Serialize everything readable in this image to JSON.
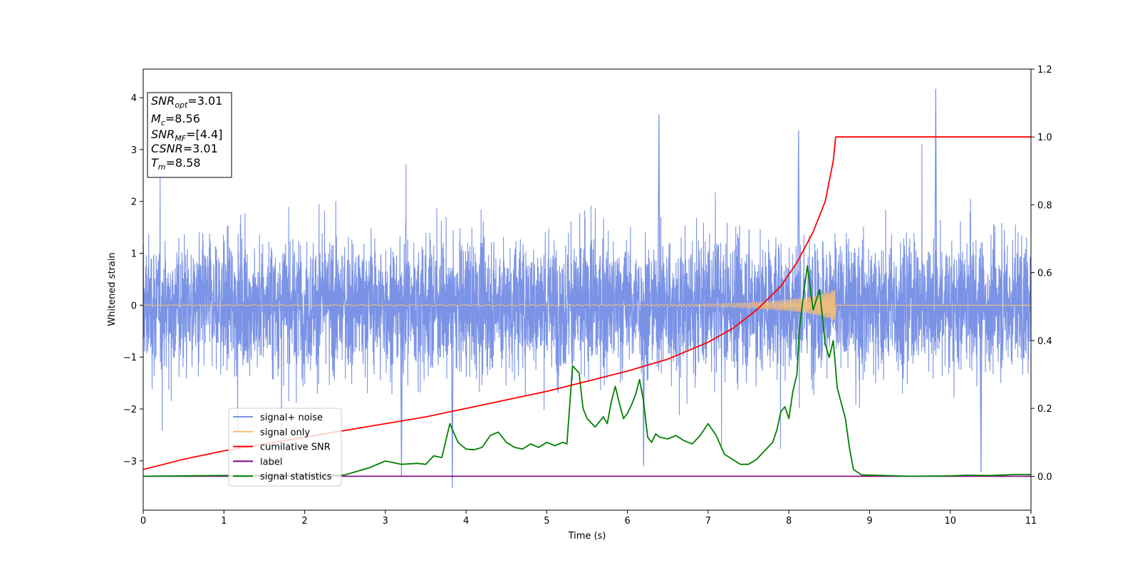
{
  "chart_data": {
    "type": "line",
    "title": "",
    "xlabel": "Time (s)",
    "ylabel": "Whitened strain",
    "xlim": [
      0,
      11
    ],
    "ylim_left": [
      -3.95,
      4.55
    ],
    "ylim_right": [
      -0.1,
      1.2
    ],
    "x_ticks": [
      0,
      1,
      2,
      3,
      4,
      5,
      6,
      7,
      8,
      9,
      10,
      11
    ],
    "y_ticks_left": [
      -3,
      -2,
      -1,
      0,
      1,
      2,
      3,
      4
    ],
    "y_ticks_left_labels": [
      "−3",
      "−2",
      "−1",
      "0",
      "1",
      "2",
      "3",
      "4"
    ],
    "y_ticks_right": [
      0.0,
      0.2,
      0.4,
      0.6,
      0.8,
      1.0,
      1.2
    ],
    "y_ticks_right_labels": [
      "0.0",
      "0.2",
      "0.4",
      "0.6",
      "0.8",
      "1.0",
      "1.2"
    ],
    "grid": false,
    "legend_position": "lower-left",
    "annotation": {
      "lines": [
        {
          "base": "SNR",
          "sub": "opt",
          "value": "=3.01"
        },
        {
          "base": "M",
          "sub": "c",
          "value": "=8.56"
        },
        {
          "base": "SNR",
          "sub": "MF",
          "value": "=[4.4]"
        },
        {
          "base": "CSNR",
          "sub": "",
          "value": "=3.01"
        },
        {
          "base": "T",
          "sub": "m",
          "value": "=8.58"
        }
      ]
    },
    "series": [
      {
        "name": "signal+ noise",
        "color": "#7b93e6",
        "axis": "left",
        "description": "whitened noisy strain, roughly ±1.5 with spikes up to 4.2 (near t=9.82) and down to -3.5 (near t=3.83)",
        "peaks": [
          {
            "x": 9.82,
            "y": 4.17
          },
          {
            "x": 6.39,
            "y": 3.68
          },
          {
            "x": 8.12,
            "y": 3.37
          },
          {
            "x": 3.83,
            "y": -3.52
          },
          {
            "x": 3.2,
            "y": -3.3
          },
          {
            "x": 10.38,
            "y": -3.22
          },
          {
            "x": 6.2,
            "y": -3.1
          }
        ]
      },
      {
        "name": "signal only",
        "color": "#f7c074",
        "axis": "left",
        "description": "chirp growing from near 0 to about ±0.32 at t≈8.58, then zero",
        "x": [
          0,
          6,
          7,
          7.5,
          7.8,
          8.0,
          8.2,
          8.4,
          8.5,
          8.58,
          8.585,
          11
        ],
        "envelope": [
          0.005,
          0.01,
          0.025,
          0.05,
          0.08,
          0.11,
          0.15,
          0.21,
          0.26,
          0.32,
          0,
          0
        ]
      },
      {
        "name": "cumilative SNR",
        "color": "#ff0000",
        "axis": "right",
        "x": [
          0,
          0.5,
          1,
          1.5,
          2,
          2.5,
          3,
          3.5,
          4,
          4.5,
          5,
          5.5,
          6,
          6.5,
          7,
          7.3,
          7.6,
          7.9,
          8.1,
          8.3,
          8.45,
          8.55,
          8.58,
          9,
          10,
          11
        ],
        "y": [
          0.02,
          0.05,
          0.075,
          0.095,
          0.115,
          0.135,
          0.155,
          0.175,
          0.2,
          0.225,
          0.25,
          0.28,
          0.31,
          0.345,
          0.395,
          0.435,
          0.49,
          0.56,
          0.63,
          0.72,
          0.81,
          0.93,
          1.0,
          1.0,
          1.0,
          1.0
        ]
      },
      {
        "name": "label",
        "color": "#800080",
        "axis": "right",
        "x": [
          0,
          11
        ],
        "y": [
          0,
          0
        ]
      },
      {
        "name": "signal statistics",
        "color": "#008000",
        "axis": "right",
        "x": [
          0,
          1,
          2,
          2.5,
          2.8,
          3.0,
          3.2,
          3.4,
          3.5,
          3.6,
          3.7,
          3.8,
          3.9,
          4.0,
          4.1,
          4.2,
          4.3,
          4.4,
          4.5,
          4.6,
          4.7,
          4.8,
          4.9,
          5.0,
          5.1,
          5.2,
          5.25,
          5.32,
          5.4,
          5.45,
          5.5,
          5.6,
          5.7,
          5.75,
          5.8,
          5.85,
          5.9,
          5.95,
          6.0,
          6.05,
          6.1,
          6.15,
          6.2,
          6.25,
          6.3,
          6.35,
          6.4,
          6.5,
          6.6,
          6.7,
          6.8,
          6.9,
          7.0,
          7.1,
          7.2,
          7.3,
          7.4,
          7.5,
          7.6,
          7.7,
          7.8,
          7.85,
          7.9,
          7.95,
          8.0,
          8.05,
          8.1,
          8.13,
          8.18,
          8.23,
          8.3,
          8.38,
          8.45,
          8.5,
          8.55,
          8.6,
          8.7,
          8.75,
          8.8,
          8.9,
          9.5,
          10.0,
          10.2,
          10.5,
          10.8,
          11.0
        ],
        "y": [
          0.0,
          0.002,
          0.002,
          0.004,
          0.025,
          0.045,
          0.035,
          0.038,
          0.035,
          0.06,
          0.055,
          0.155,
          0.1,
          0.08,
          0.078,
          0.085,
          0.12,
          0.13,
          0.1,
          0.085,
          0.08,
          0.095,
          0.085,
          0.1,
          0.09,
          0.1,
          0.095,
          0.325,
          0.305,
          0.2,
          0.17,
          0.145,
          0.175,
          0.155,
          0.22,
          0.265,
          0.215,
          0.17,
          0.185,
          0.21,
          0.24,
          0.285,
          0.22,
          0.115,
          0.1,
          0.125,
          0.115,
          0.11,
          0.12,
          0.105,
          0.095,
          0.12,
          0.155,
          0.12,
          0.065,
          0.05,
          0.035,
          0.035,
          0.05,
          0.075,
          0.1,
          0.135,
          0.19,
          0.205,
          0.17,
          0.25,
          0.3,
          0.43,
          0.535,
          0.62,
          0.49,
          0.55,
          0.39,
          0.35,
          0.4,
          0.26,
          0.17,
          0.085,
          0.02,
          0.004,
          0.0,
          0.001,
          0.003,
          0.002,
          0.005,
          0.005
        ]
      }
    ]
  }
}
